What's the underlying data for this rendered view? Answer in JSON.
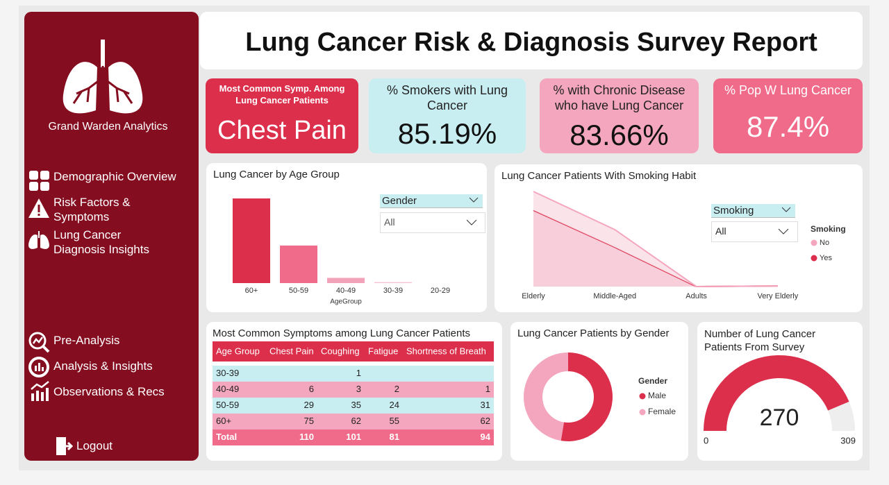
{
  "sidebar": {
    "brand": "Grand Warden Analytics",
    "nav": [
      "Demographic Overview",
      "Risk Factors & Symptoms",
      "Lung Cancer Diagnosis Insights",
      "Pre-Analysis",
      "Analysis & Insights",
      "Observations & Recs"
    ],
    "logout": "Logout"
  },
  "header": {
    "title": "Lung Cancer Risk & Diagnosis Survey Report"
  },
  "kpis": [
    {
      "label": "Most Common Symp. Among Lung Cancer Patients",
      "value": "Chest Pain"
    },
    {
      "label": "% Smokers with Lung Cancer",
      "value": "85.19%"
    },
    {
      "label": "% with Chronic Disease who have Lung Cancer",
      "value": "83.66%"
    },
    {
      "label": "% Pop W Lung Cancer",
      "value": "87.4%"
    }
  ],
  "chart_data": [
    {
      "type": "bar",
      "title": "Lung Cancer by Age Group",
      "x_label": "AgeGroup",
      "categories": [
        "60+",
        "50-59",
        "40-49",
        "30-39",
        "20-29"
      ],
      "values": [
        178,
        79,
        11,
        2,
        0
      ],
      "colors": [
        "#dc2f4c",
        "#f06a89",
        "#f3a3b9",
        "#f6c3d1",
        "#f8d5de"
      ],
      "filter": {
        "label": "Gender",
        "value": "All"
      }
    },
    {
      "type": "area",
      "title": "Lung Cancer Patients With Smoking Habit",
      "stacked": true,
      "categories": [
        "Elderly",
        "Middle-Aged",
        "Adults",
        "Very Elderly"
      ],
      "series": [
        {
          "name": "No",
          "color": "#f4a6be",
          "values": [
            32,
            30,
            0,
            0
          ]
        },
        {
          "name": "Yes",
          "color": "#dc2f4c",
          "values": [
            130,
            67,
            0,
            1
          ]
        }
      ],
      "legend_title": "Smoking",
      "filter": {
        "label": "Smoking",
        "value": "All"
      }
    },
    {
      "type": "donut",
      "title": "Lung Cancer Patients by Gender",
      "categories": [
        "Male",
        "Female"
      ],
      "values": [
        142,
        128
      ],
      "colors": [
        "#dc2f4c",
        "#f4a6be"
      ],
      "legend_title": "Gender"
    },
    {
      "type": "gauge",
      "title": "Number of Lung Cancer Patients From Survey",
      "value": 270,
      "min": 0,
      "max": 309,
      "color": "#dc2f4c",
      "track_color": "#eeeeee"
    }
  ],
  "table": {
    "title": "Most Common Symptoms among Lung Cancer Patients",
    "columns": [
      "Age Group",
      "Chest Pain",
      "Coughing",
      "Fatigue",
      "Shortness of Breath"
    ],
    "rows": [
      [
        "30-39",
        null,
        1,
        null,
        null
      ],
      [
        "40-49",
        6,
        3,
        2,
        1
      ],
      [
        "50-59",
        29,
        35,
        24,
        31
      ],
      [
        "60+",
        75,
        62,
        55,
        62
      ]
    ],
    "total": [
      "Total",
      110,
      101,
      81,
      94
    ]
  }
}
